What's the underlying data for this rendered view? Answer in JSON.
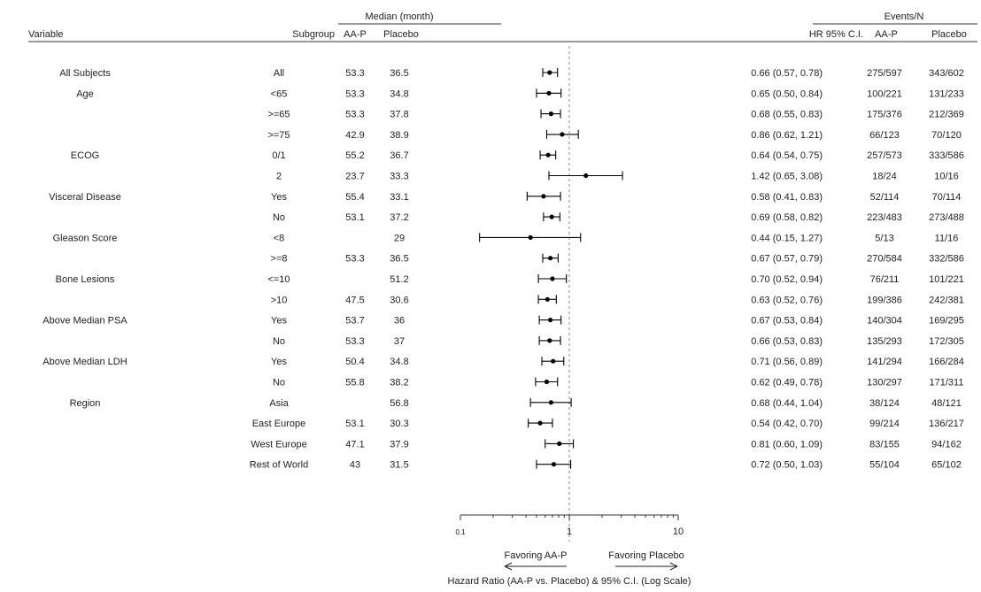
{
  "chart_data": {
    "type": "forest",
    "header": {
      "variable": "Variable",
      "subgroup": "Subgroup",
      "median_group": "Median (month)",
      "median_aap": "AA-P",
      "median_placebo": "Placebo",
      "hr": "HR 95% C.I.",
      "events_group": "Events/N",
      "events_aap": "AA-P",
      "events_placebo": "Placebo"
    },
    "rows": [
      {
        "variable": "All Subjects",
        "subgroup": "All",
        "median_aap": "53.3",
        "median_placebo": "36.5",
        "hr": 0.66,
        "lo": 0.57,
        "hi": 0.78,
        "hr_text": "0.66 (0.57, 0.78)",
        "events_aap": "275/597",
        "events_placebo": "343/602"
      },
      {
        "variable": "Age",
        "subgroup": "<65",
        "median_aap": "53.3",
        "median_placebo": "34.8",
        "hr": 0.65,
        "lo": 0.5,
        "hi": 0.84,
        "hr_text": "0.65 (0.50, 0.84)",
        "events_aap": "100/221",
        "events_placebo": "131/233"
      },
      {
        "variable": "",
        "subgroup": ">=65",
        "median_aap": "53.3",
        "median_placebo": "37.8",
        "hr": 0.68,
        "lo": 0.55,
        "hi": 0.83,
        "hr_text": "0.68 (0.55, 0.83)",
        "events_aap": "175/376",
        "events_placebo": "212/369"
      },
      {
        "variable": "",
        "subgroup": ">=75",
        "median_aap": "42.9",
        "median_placebo": "38.9",
        "hr": 0.86,
        "lo": 0.62,
        "hi": 1.21,
        "hr_text": "0.86 (0.62, 1.21)",
        "events_aap": "66/123",
        "events_placebo": "70/120"
      },
      {
        "variable": "ECOG",
        "subgroup": "0/1",
        "median_aap": "55.2",
        "median_placebo": "36.7",
        "hr": 0.64,
        "lo": 0.54,
        "hi": 0.75,
        "hr_text": "0.64 (0.54, 0.75)",
        "events_aap": "257/573",
        "events_placebo": "333/586"
      },
      {
        "variable": "",
        "subgroup": "2",
        "median_aap": "23.7",
        "median_placebo": "33.3",
        "hr": 1.42,
        "lo": 0.65,
        "hi": 3.08,
        "hr_text": "1.42 (0.65, 3.08)",
        "events_aap": "18/24",
        "events_placebo": "10/16"
      },
      {
        "variable": "Visceral Disease",
        "subgroup": "Yes",
        "median_aap": "55.4",
        "median_placebo": "33.1",
        "hr": 0.58,
        "lo": 0.41,
        "hi": 0.83,
        "hr_text": "0.58 (0.41, 0.83)",
        "events_aap": "52/114",
        "events_placebo": "70/114"
      },
      {
        "variable": "",
        "subgroup": "No",
        "median_aap": "53.1",
        "median_placebo": "37.2",
        "hr": 0.69,
        "lo": 0.58,
        "hi": 0.82,
        "hr_text": "0.69 (0.58, 0.82)",
        "events_aap": "223/483",
        "events_placebo": "273/488"
      },
      {
        "variable": "Gleason Score",
        "subgroup": "<8",
        "median_aap": "",
        "median_placebo": "29",
        "hr": 0.44,
        "lo": 0.15,
        "hi": 1.27,
        "hr_text": "0.44 (0.15, 1.27)",
        "events_aap": "5/13",
        "events_placebo": "11/16"
      },
      {
        "variable": "",
        "subgroup": ">=8",
        "median_aap": "53.3",
        "median_placebo": "36.5",
        "hr": 0.67,
        "lo": 0.57,
        "hi": 0.79,
        "hr_text": "0.67 (0.57, 0.79)",
        "events_aap": "270/584",
        "events_placebo": "332/586"
      },
      {
        "variable": "Bone Lesions",
        "subgroup": "<=10",
        "median_aap": "",
        "median_placebo": "51.2",
        "hr": 0.7,
        "lo": 0.52,
        "hi": 0.94,
        "hr_text": "0.70 (0.52, 0.94)",
        "events_aap": "76/211",
        "events_placebo": "101/221"
      },
      {
        "variable": "",
        "subgroup": ">10",
        "median_aap": "47.5",
        "median_placebo": "30.6",
        "hr": 0.63,
        "lo": 0.52,
        "hi": 0.76,
        "hr_text": "0.63 (0.52, 0.76)",
        "events_aap": "199/386",
        "events_placebo": "242/381"
      },
      {
        "variable": "Above Median PSA",
        "subgroup": "Yes",
        "median_aap": "53.7",
        "median_placebo": "36",
        "hr": 0.67,
        "lo": 0.53,
        "hi": 0.84,
        "hr_text": "0.67 (0.53, 0.84)",
        "events_aap": "140/304",
        "events_placebo": "169/295"
      },
      {
        "variable": "",
        "subgroup": "No",
        "median_aap": "53.3",
        "median_placebo": "37",
        "hr": 0.66,
        "lo": 0.53,
        "hi": 0.83,
        "hr_text": "0.66 (0.53, 0.83)",
        "events_aap": "135/293",
        "events_placebo": "172/305"
      },
      {
        "variable": "Above Median LDH",
        "subgroup": "Yes",
        "median_aap": "50.4",
        "median_placebo": "34.8",
        "hr": 0.71,
        "lo": 0.56,
        "hi": 0.89,
        "hr_text": "0.71 (0.56, 0.89)",
        "events_aap": "141/294",
        "events_placebo": "166/284"
      },
      {
        "variable": "",
        "subgroup": "No",
        "median_aap": "55.8",
        "median_placebo": "38.2",
        "hr": 0.62,
        "lo": 0.49,
        "hi": 0.78,
        "hr_text": "0.62 (0.49, 0.78)",
        "events_aap": "130/297",
        "events_placebo": "171/311"
      },
      {
        "variable": "Region",
        "subgroup": "Asia",
        "median_aap": "",
        "median_placebo": "56.8",
        "hr": 0.68,
        "lo": 0.44,
        "hi": 1.04,
        "hr_text": "0.68 (0.44, 1.04)",
        "events_aap": "38/124",
        "events_placebo": "48/121"
      },
      {
        "variable": "",
        "subgroup": "East Europe",
        "median_aap": "53.1",
        "median_placebo": "30.3",
        "hr": 0.54,
        "lo": 0.42,
        "hi": 0.7,
        "hr_text": "0.54 (0.42, 0.70)",
        "events_aap": "99/214",
        "events_placebo": "136/217"
      },
      {
        "variable": "",
        "subgroup": "West Europe",
        "median_aap": "47.1",
        "median_placebo": "37.9",
        "hr": 0.81,
        "lo": 0.6,
        "hi": 1.09,
        "hr_text": "0.81 (0.60, 1.09)",
        "events_aap": "83/155",
        "events_placebo": "94/162"
      },
      {
        "variable": "",
        "subgroup": "Rest of World",
        "median_aap": "43",
        "median_placebo": "31.5",
        "hr": 0.72,
        "lo": 0.5,
        "hi": 1.03,
        "hr_text": "0.72 (0.50, 1.03)",
        "events_aap": "55/104",
        "events_placebo": "65/102"
      }
    ],
    "x_axis": {
      "scale": "log",
      "range": [
        0.1,
        10
      ],
      "ticks": [
        {
          "value": 0.1,
          "label": "0.1"
        },
        {
          "value": 1,
          "label": "1"
        },
        {
          "value": 10,
          "label": "10"
        }
      ],
      "reference_line": 1,
      "title": "Hazard Ratio (AA-P vs. Placebo) & 95% C.I. (Log Scale)",
      "favor_left": "Favoring AA-P",
      "favor_right": "Favoring Placebo"
    },
    "colors": {
      "marks": "#000000",
      "text": "#222222",
      "reference_line": "#888888"
    }
  }
}
